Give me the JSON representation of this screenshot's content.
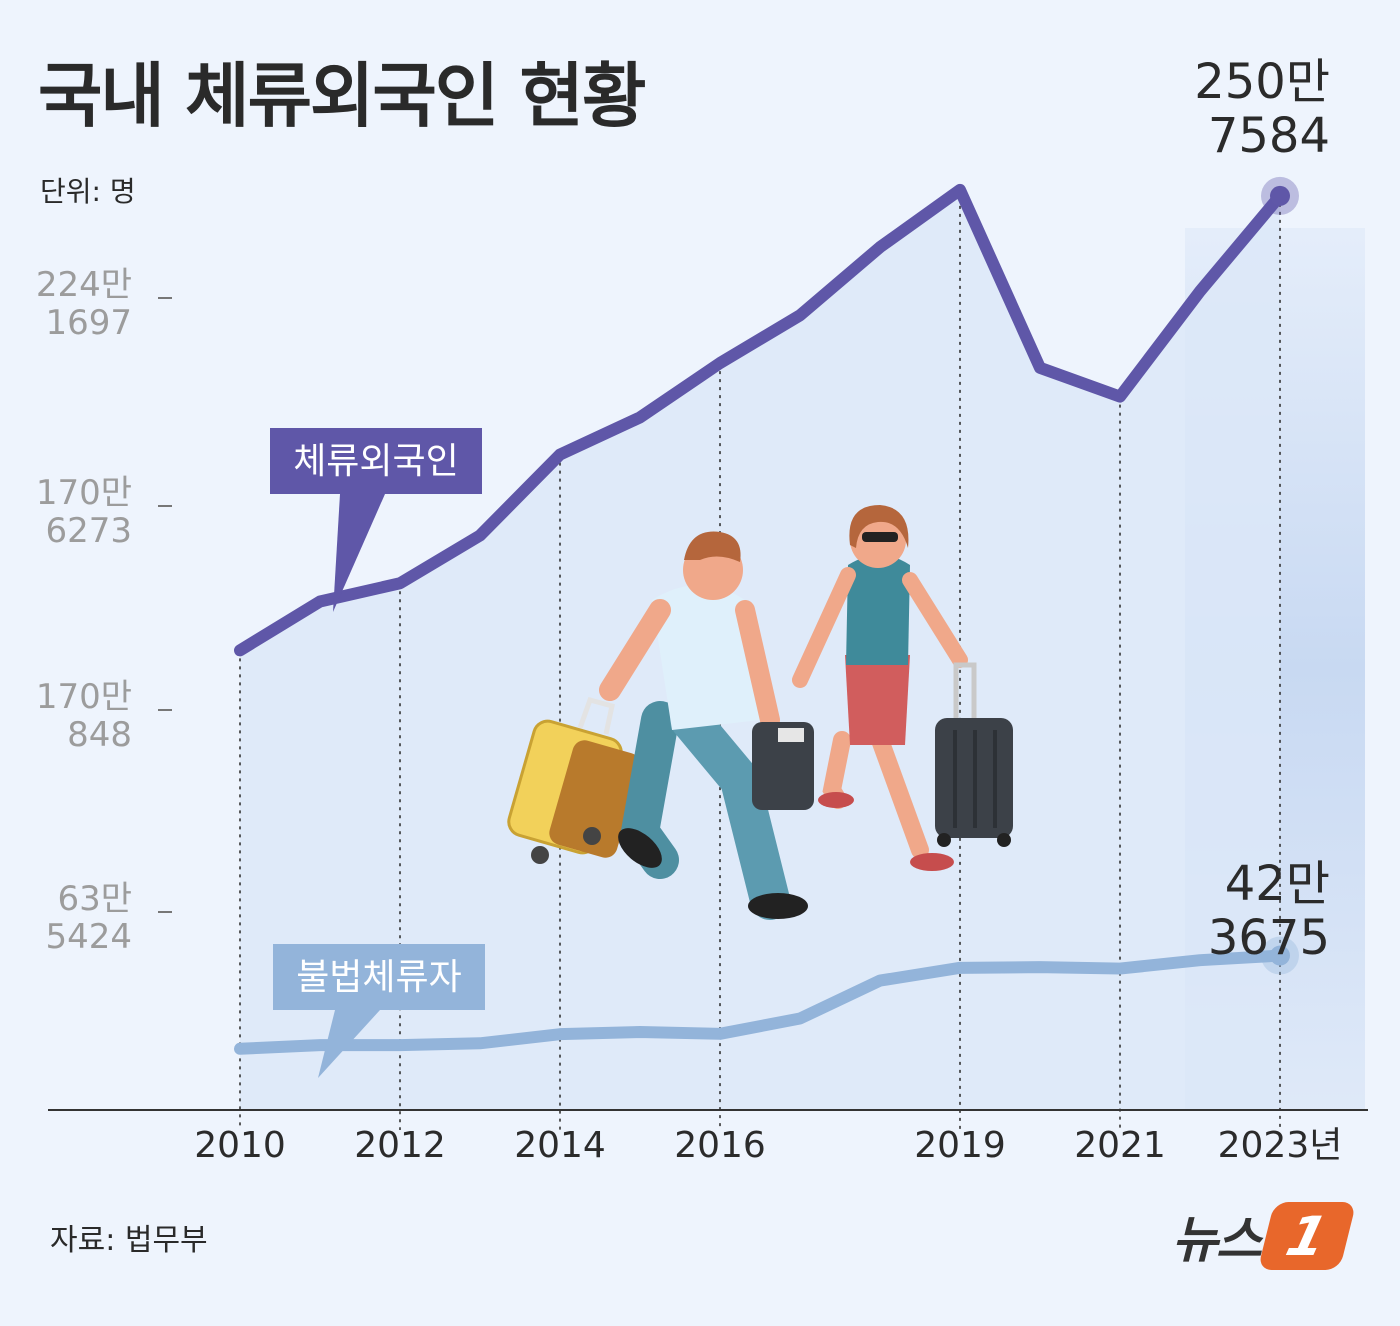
{
  "header": {
    "title": "국내 체류외국인 현황",
    "unit": "단위: 명"
  },
  "footer": {
    "source": "자료: 법무부",
    "logo_text": "뉴스",
    "logo_badge": "1"
  },
  "colors": {
    "background": "#eef4fd",
    "area_fill": "#dce7f8",
    "highlight_band": "#c8d9f2",
    "foreigners_line": "#5f57a8",
    "illegal_line": "#93b4da",
    "logo": "#e8672b"
  },
  "chart_data": {
    "type": "line",
    "title": "국내 체류외국인 현황",
    "unit": "명",
    "x": [
      2010,
      2011,
      2012,
      2013,
      2014,
      2015,
      2016,
      2017,
      2018,
      2019,
      2020,
      2021,
      2022,
      2023
    ],
    "xtick_labels": [
      "2010",
      "2012",
      "2014",
      "2016",
      "2019",
      "2021",
      "2023년"
    ],
    "xtick_values": [
      2010,
      2012,
      2014,
      2016,
      2019,
      2021,
      2023
    ],
    "ytick_labels": [
      {
        "line1": "224만",
        "line2": "1697",
        "value": 2241697
      },
      {
        "line1": "170만",
        "line2": "6273",
        "value": 1706273
      },
      {
        "line1": "170만",
        "line2": "848",
        "value": 1700848
      },
      {
        "line1": "63만",
        "line2": "5424",
        "value": 635424
      }
    ],
    "grid": false,
    "series": [
      {
        "name": "체류외국인",
        "values": [
          1261000,
          1395000,
          1445000,
          1576000,
          1798000,
          1900000,
          2049000,
          2180000,
          2367000,
          2524000,
          2036000,
          1957000,
          2246000,
          2507584
        ],
        "end_label": [
          "250만",
          "7584"
        ]
      },
      {
        "name": "불법체류자",
        "values": [
          168000,
          178000,
          178000,
          183000,
          208000,
          214000,
          209000,
          251000,
          355000,
          390000,
          392000,
          388000,
          411000,
          423675
        ],
        "end_label": [
          "42만",
          "3675"
        ]
      }
    ],
    "highlight_x": 2023
  }
}
